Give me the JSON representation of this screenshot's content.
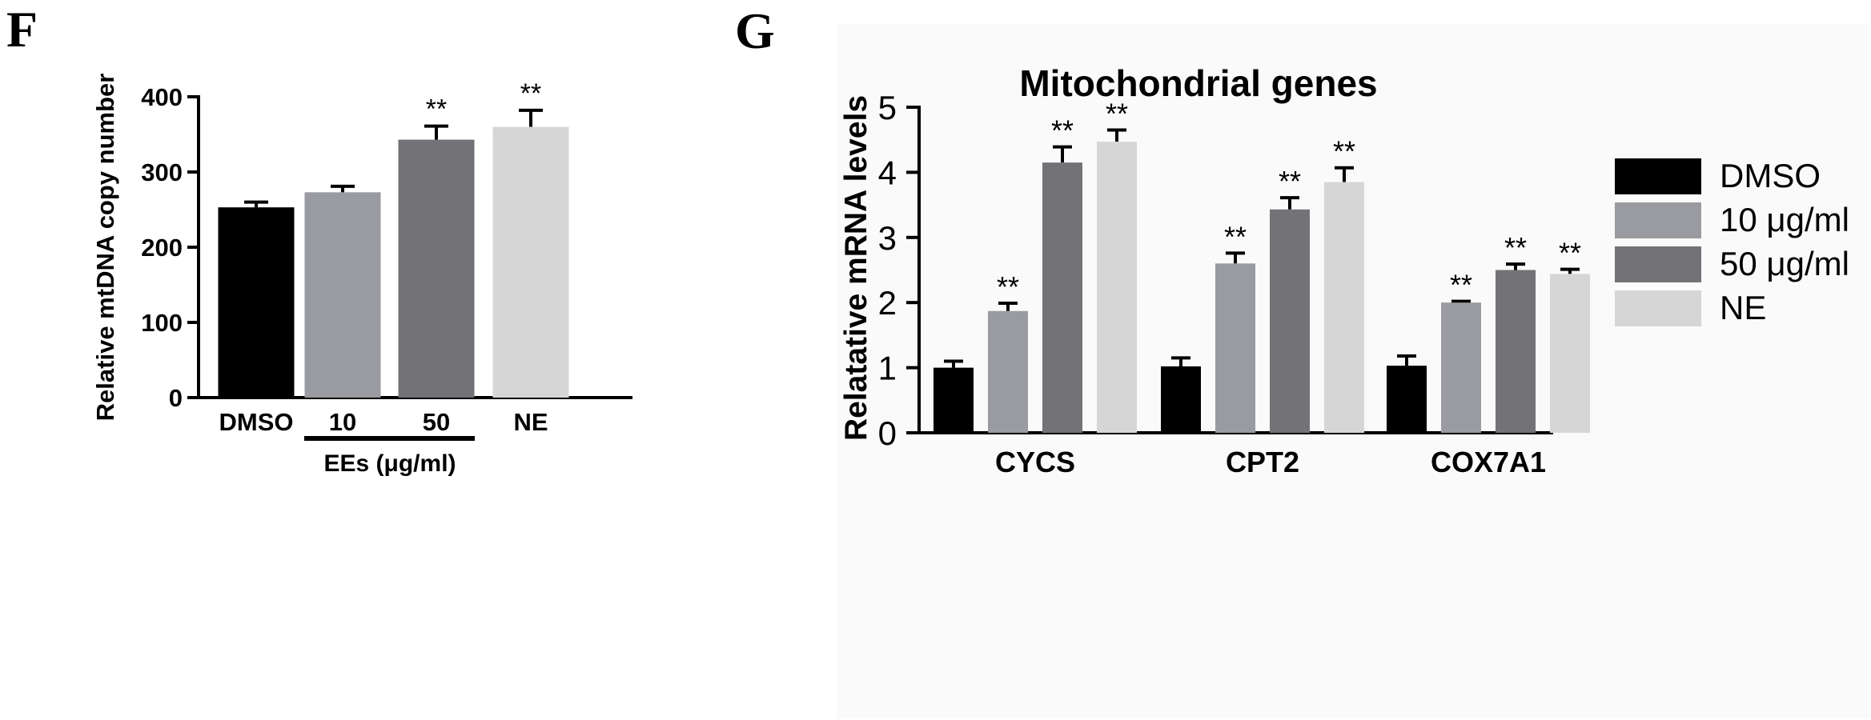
{
  "panels": {
    "F": {
      "letter": "F"
    },
    "G": {
      "letter": "G"
    }
  },
  "chart_data": [
    {
      "type": "bar",
      "panel": "F",
      "title": "",
      "xlabel": "",
      "ylabel": "Relative mtDNA copy number",
      "ylim": [
        0,
        400
      ],
      "yticks": [
        0,
        100,
        200,
        300,
        400
      ],
      "categories": [
        "DMSO",
        "10",
        "50",
        "NE"
      ],
      "values": [
        253,
        273,
        343,
        360
      ],
      "errors": [
        7,
        8,
        18,
        22
      ],
      "significance": [
        "",
        "",
        "**",
        "**"
      ],
      "colors": [
        "#000000",
        "#9a9aa1",
        "#727277",
        "#d6d6d6"
      ],
      "group_label": "EEs (μg/ml)"
    },
    {
      "type": "bar",
      "panel": "G",
      "title": "Mitochondrial genes",
      "xlabel": "",
      "ylabel": "Relatative mRNA levels",
      "ylim": [
        0,
        5
      ],
      "yticks": [
        0,
        1,
        2,
        3,
        4,
        5
      ],
      "categories": [
        "CYCS",
        "CPT2",
        "COX7A1"
      ],
      "series": [
        {
          "name": "DMSO",
          "color": "#000000",
          "values": [
            1.0,
            1.02,
            1.03
          ],
          "errors": [
            0.1,
            0.13,
            0.15
          ],
          "significance": [
            "",
            "",
            ""
          ]
        },
        {
          "name": "10 μg/ml",
          "color": "#9a9aa1",
          "values": [
            1.87,
            2.6,
            2.0
          ],
          "errors": [
            0.12,
            0.16,
            0.02
          ],
          "significance": [
            "**",
            "**",
            "**"
          ]
        },
        {
          "name": "50 μg/ml",
          "color": "#727277",
          "values": [
            4.15,
            3.43,
            2.5
          ],
          "errors": [
            0.24,
            0.18,
            0.09
          ],
          "significance": [
            "**",
            "**",
            "**"
          ]
        },
        {
          "name": "NE",
          "color": "#d6d6d6",
          "values": [
            4.47,
            3.85,
            2.44
          ],
          "errors": [
            0.18,
            0.22,
            0.07
          ],
          "significance": [
            "**",
            "**",
            "**"
          ]
        }
      ],
      "legend_position": "right"
    }
  ]
}
